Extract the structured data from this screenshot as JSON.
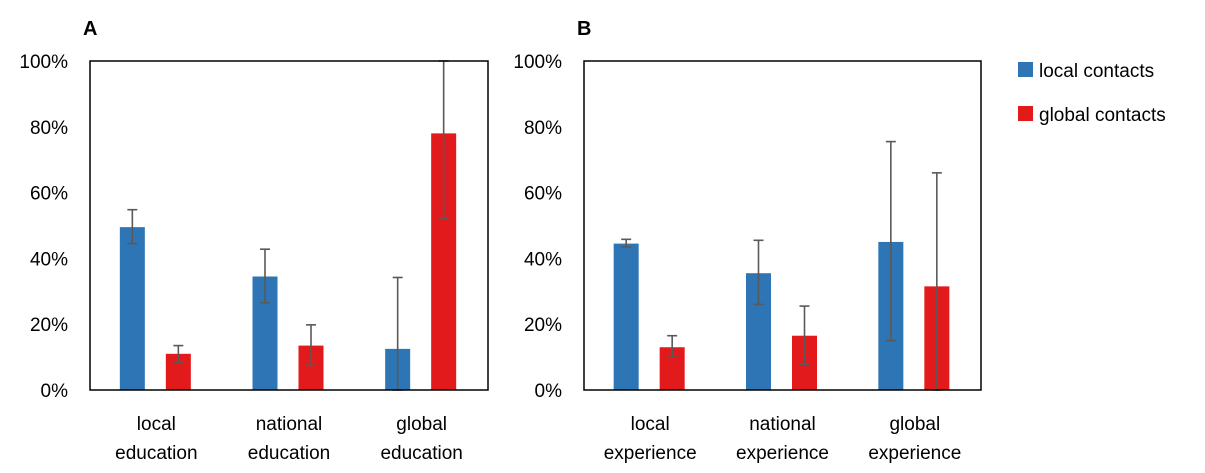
{
  "chart_data": [
    {
      "type": "bar",
      "panel": "A",
      "categories": [
        [
          "local",
          "education"
        ],
        [
          "national",
          "education"
        ],
        [
          "global",
          "education"
        ]
      ],
      "series": [
        {
          "name": "local contacts",
          "color": "#2E75B6",
          "values": [
            49.5,
            34.5,
            12.5
          ],
          "err_low": [
            44.5,
            26.5,
            0
          ],
          "err_high": [
            54.8,
            42.8,
            34.2
          ]
        },
        {
          "name": "global contacts",
          "color": "#E31A1C",
          "values": [
            11,
            13.5,
            78
          ],
          "err_low": [
            8.5,
            7.5,
            52
          ],
          "err_high": [
            13.5,
            19.8,
            100
          ]
        }
      ],
      "ylim": [
        0,
        100
      ],
      "yticks": [
        "0%",
        "20%",
        "40%",
        "60%",
        "80%",
        "100%"
      ],
      "xlabel": "",
      "ylabel": "",
      "title": ""
    },
    {
      "type": "bar",
      "panel": "B",
      "categories": [
        [
          "local",
          "experience"
        ],
        [
          "national",
          "experience"
        ],
        [
          "global",
          "experience"
        ]
      ],
      "series": [
        {
          "name": "local contacts",
          "color": "#2E75B6",
          "values": [
            44.5,
            35.5,
            45
          ],
          "err_low": [
            43.5,
            26,
            15
          ],
          "err_high": [
            45.8,
            45.5,
            75.5
          ]
        },
        {
          "name": "global contacts",
          "color": "#E31A1C",
          "values": [
            13,
            16.5,
            31.5
          ],
          "err_low": [
            10,
            7.8,
            0
          ],
          "err_high": [
            16.5,
            25.5,
            66
          ]
        }
      ],
      "ylim": [
        0,
        100
      ],
      "yticks": [
        "0%",
        "20%",
        "40%",
        "60%",
        "80%",
        "100%"
      ],
      "xlabel": "",
      "ylabel": "",
      "title": ""
    }
  ],
  "legend": {
    "placement": "top-right",
    "items": [
      {
        "label": "local contacts",
        "color": "#2E75B6"
      },
      {
        "label": "global contacts",
        "color": "#E31A1C"
      }
    ]
  }
}
